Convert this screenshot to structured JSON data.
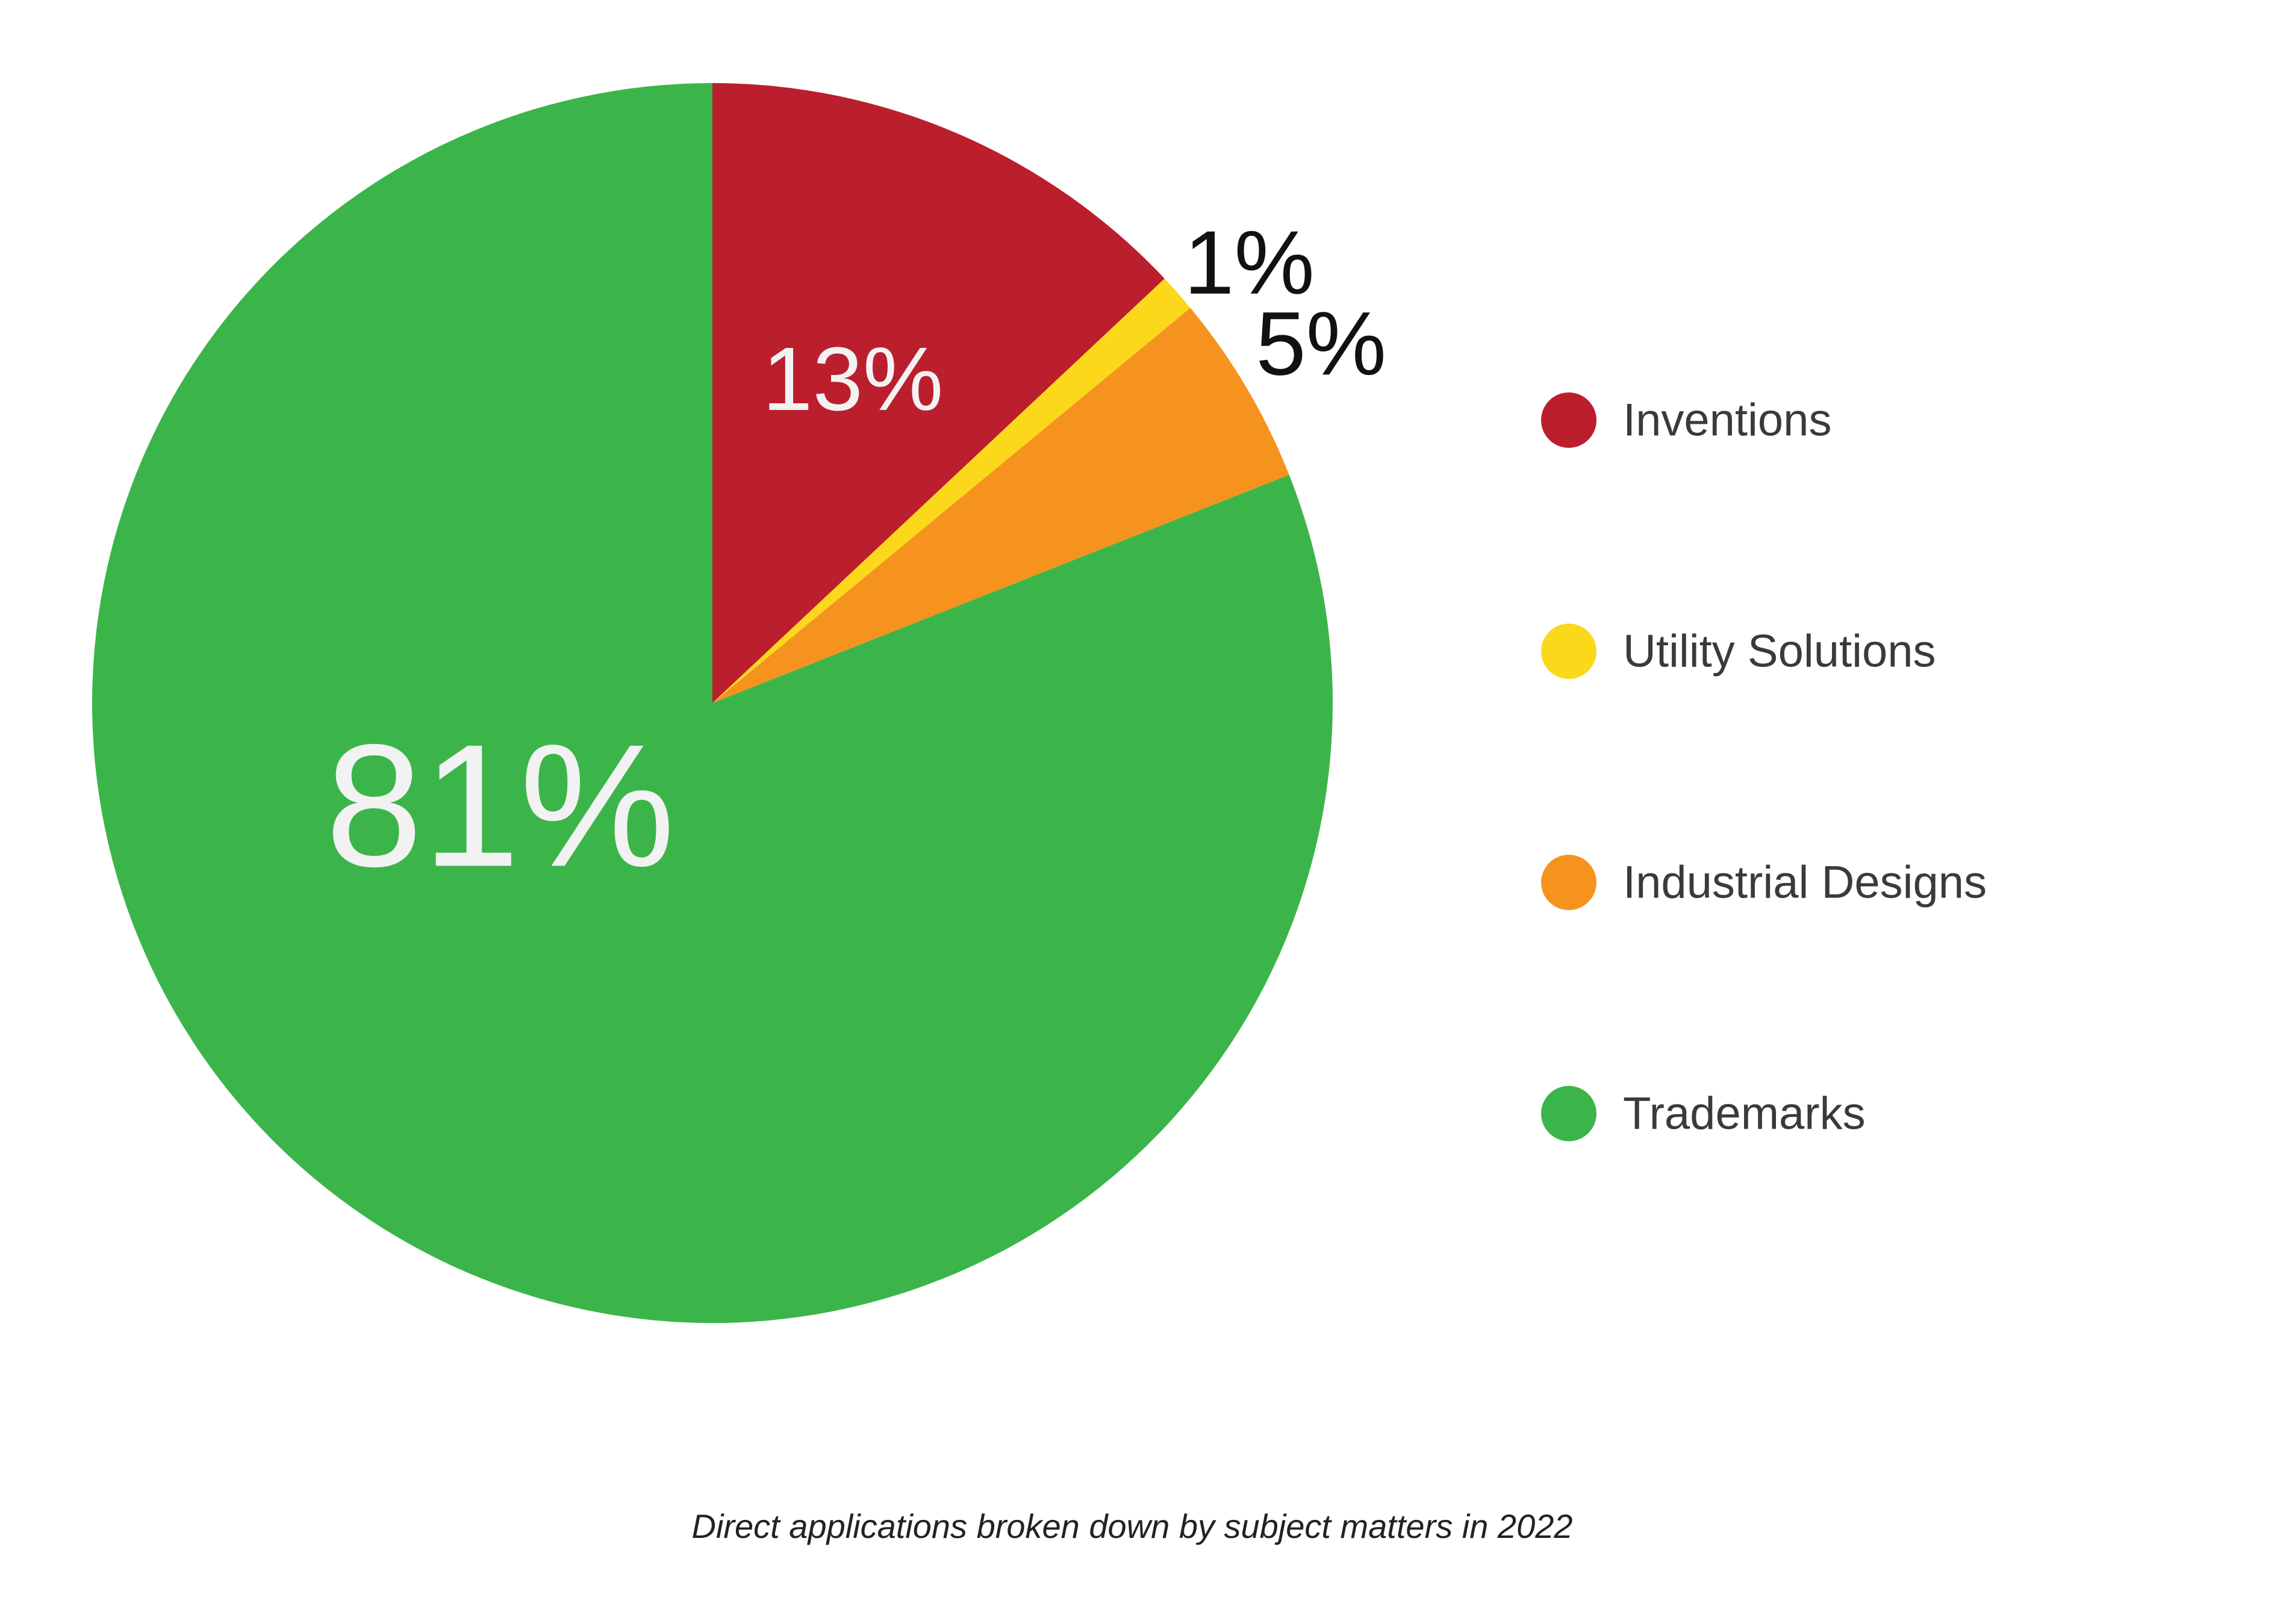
{
  "chart_data": {
    "type": "pie",
    "categories": [
      "Inventions",
      "Utility Solutions",
      "Industrial Designs",
      "Trademarks"
    ],
    "values": [
      13,
      1,
      5,
      81
    ],
    "labels": [
      "13%",
      "1%",
      "5%",
      "81%"
    ],
    "colors": [
      "#bb1e2d",
      "#fcd81b",
      "#f6931f",
      "#3bb54a"
    ],
    "label_colors": [
      "#f2f2f2",
      "#111111",
      "#111111",
      "#f2f2f2"
    ],
    "legend_position": "right",
    "caption": "Direct applications broken down by subject matters in 2022"
  }
}
